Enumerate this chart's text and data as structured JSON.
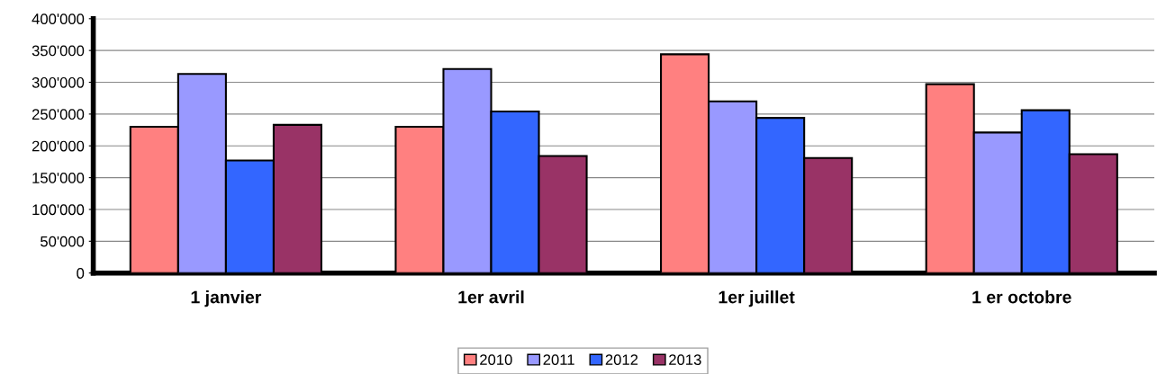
{
  "chart_data": {
    "type": "bar",
    "categories": [
      "1 janvier",
      "1er avril",
      "1er juillet",
      "1 er octobre"
    ],
    "series": [
      {
        "name": "2010",
        "color": "#ff8080",
        "values": [
          230000,
          230000,
          344000,
          297000
        ]
      },
      {
        "name": "2011",
        "color": "#9999ff",
        "values": [
          313000,
          321000,
          270000,
          221000
        ]
      },
      {
        "name": "2012",
        "color": "#3366ff",
        "values": [
          177000,
          254000,
          244000,
          256000
        ]
      },
      {
        "name": "2013",
        "color": "#993366",
        "values": [
          233000,
          184000,
          181000,
          187000
        ]
      }
    ],
    "ylim": [
      0,
      400000
    ],
    "yticks": [
      0,
      {
        "value": 50000,
        "label": "50'000"
      },
      {
        "value": 100000,
        "label": "100'000"
      },
      {
        "value": 150000,
        "label": "150'000"
      },
      {
        "value": 200000,
        "label": "200'000"
      },
      {
        "value": 250000,
        "label": "250'000"
      },
      {
        "value": 300000,
        "label": "300'000"
      },
      {
        "value": 350000,
        "label": "350'000"
      },
      {
        "value": 400000,
        "label": "400'000"
      }
    ],
    "grid": "y",
    "legend": "bottom"
  }
}
